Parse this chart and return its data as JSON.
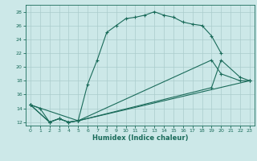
{
  "xlabel": "Humidex (Indice chaleur)",
  "background_color": "#cce8e8",
  "grid_color": "#aacccc",
  "line_color": "#1a6b5a",
  "xlim": [
    -0.5,
    23.5
  ],
  "ylim": [
    11.5,
    29.0
  ],
  "xticks": [
    0,
    1,
    2,
    3,
    4,
    5,
    6,
    7,
    8,
    9,
    10,
    11,
    12,
    13,
    14,
    15,
    16,
    17,
    18,
    19,
    20,
    21,
    22,
    23
  ],
  "yticks": [
    12,
    14,
    16,
    18,
    20,
    22,
    24,
    26,
    28
  ],
  "line1_x": [
    0,
    1,
    2,
    3,
    4,
    5,
    6,
    7,
    8,
    9,
    10,
    11,
    12,
    13,
    14,
    15,
    16,
    17,
    18,
    19,
    20
  ],
  "line1_y": [
    14.5,
    14.0,
    12.0,
    12.5,
    12.0,
    12.2,
    17.5,
    21.0,
    25.0,
    26.0,
    27.0,
    27.2,
    27.5,
    28.0,
    27.5,
    27.2,
    26.5,
    26.2,
    26.0,
    24.5,
    22.0
  ],
  "line2_x": [
    0,
    5,
    19,
    20,
    22,
    23
  ],
  "line2_y": [
    14.5,
    12.2,
    21.0,
    19.0,
    18.0,
    18.0
  ],
  "line3_x": [
    0,
    2,
    3,
    4,
    5,
    19,
    20,
    22,
    23
  ],
  "line3_y": [
    14.5,
    12.0,
    12.5,
    12.0,
    12.2,
    17.0,
    21.0,
    18.5,
    18.0
  ],
  "line4_x": [
    0,
    2,
    3,
    4,
    5,
    23
  ],
  "line4_y": [
    14.5,
    12.0,
    12.5,
    12.0,
    12.2,
    18.0
  ]
}
